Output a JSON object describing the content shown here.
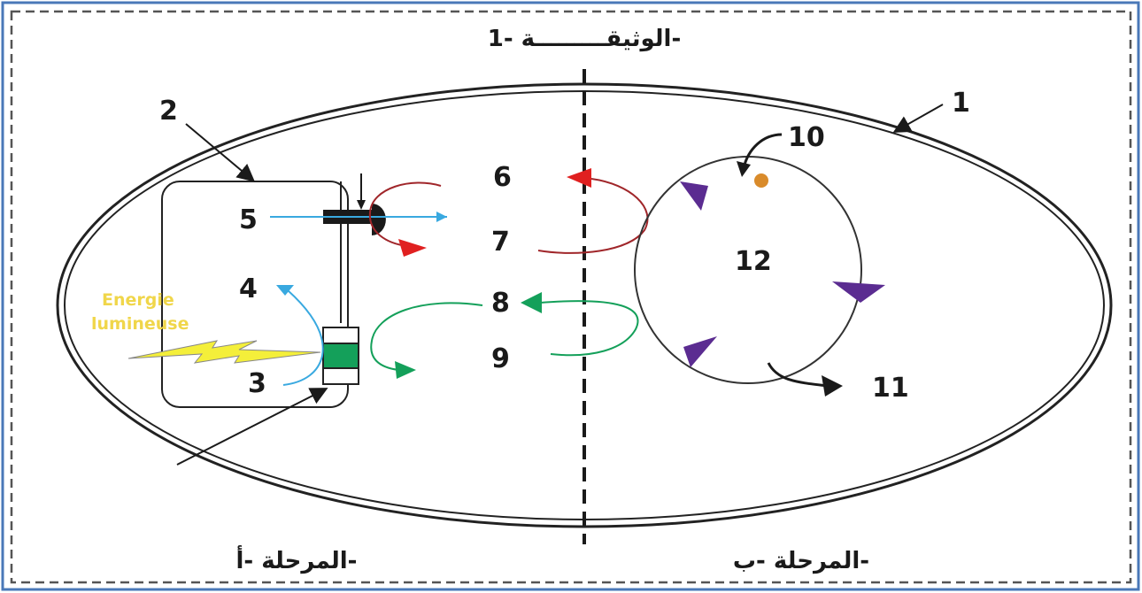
{
  "document_title": "الوثيقـــــــــة -1-",
  "phase_a_label": "المرحلة -أ-",
  "phase_b_label": "المرحلة -ب-",
  "energy_label": [
    "Energie",
    "lumineuse"
  ],
  "labels": {
    "l1": "1",
    "l2": "2",
    "l3": "3",
    "l4": "4",
    "l5": "5",
    "l6": "6",
    "l7": "7",
    "l8": "8",
    "l9": "9",
    "l10": "10",
    "l11": "11",
    "l12": "12"
  },
  "colors": {
    "border": "#4a78b8",
    "frame_dash": "#555555",
    "red_molecule": "#e02020",
    "dark_red_curve": "#a0262a",
    "blue_molecule": "#39a9e0",
    "green_molecule": "#14a05a",
    "purple_arrow": "#5b2c91",
    "orange_dot": "#d98b2b",
    "lightning_yellow": "#f4ef3a",
    "energy_text": "#f0d64a"
  }
}
